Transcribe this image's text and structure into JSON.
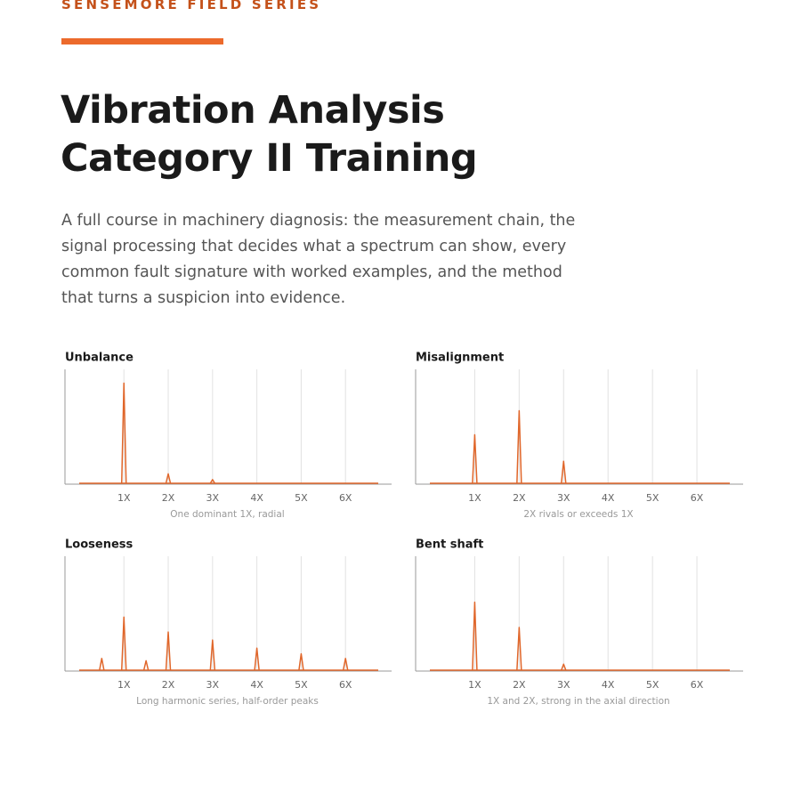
{
  "header": {
    "eyebrow": "SENSEMORE FIELD SERIES",
    "title_lines": [
      "Vibration Analysis",
      "Category II Training"
    ],
    "description": "A full course in machinery diagnosis: the measurement chain, the signal processing that decides what a spectrum can show, every common fault signature with worked examples, and the method that turns a suspicion into evidence."
  },
  "chart_data": [
    {
      "type": "line",
      "title": "Unbalance",
      "caption": "One dominant 1X, radial",
      "color": "#e0662a",
      "x": [
        1,
        2,
        3
      ],
      "values": [
        0.88,
        0.09,
        0.04
      ],
      "xlim": [
        -0.33,
        7.04
      ],
      "ylim": [
        0,
        1
      ],
      "grid": true,
      "xticks": [
        {
          "value": 1,
          "label": "1X"
        },
        {
          "value": 2,
          "label": "2X"
        },
        {
          "value": 3,
          "label": "3X"
        },
        {
          "value": 4,
          "label": "4X"
        },
        {
          "value": 5,
          "label": "5X"
        },
        {
          "value": 6,
          "label": "6X"
        }
      ]
    },
    {
      "type": "line",
      "title": "Misalignment",
      "caption": "2X rivals or exceeds 1X",
      "color": "#e0662a",
      "x": [
        1,
        2,
        3
      ],
      "values": [
        0.43,
        0.64,
        0.2
      ],
      "xlim": [
        -0.33,
        7.04
      ],
      "ylim": [
        0,
        1
      ],
      "grid": true,
      "xticks": [
        {
          "value": 1,
          "label": "1X"
        },
        {
          "value": 2,
          "label": "2X"
        },
        {
          "value": 3,
          "label": "3X"
        },
        {
          "value": 4,
          "label": "4X"
        },
        {
          "value": 5,
          "label": "5X"
        },
        {
          "value": 6,
          "label": "6X"
        }
      ]
    },
    {
      "type": "line",
      "title": "Looseness",
      "caption": "Long harmonic series, half-order peaks",
      "color": "#e0662a",
      "x": [
        0.5,
        1,
        1.5,
        2,
        3,
        4,
        5,
        6
      ],
      "values": [
        0.11,
        0.47,
        0.09,
        0.34,
        0.27,
        0.2,
        0.15,
        0.11
      ],
      "xlim": [
        -0.33,
        7.04
      ],
      "ylim": [
        0,
        1
      ],
      "grid": true,
      "xticks": [
        {
          "value": 1,
          "label": "1X"
        },
        {
          "value": 2,
          "label": "2X"
        },
        {
          "value": 3,
          "label": "3X"
        },
        {
          "value": 4,
          "label": "4X"
        },
        {
          "value": 5,
          "label": "5X"
        },
        {
          "value": 6,
          "label": "6X"
        }
      ]
    },
    {
      "type": "line",
      "title": "Bent shaft",
      "caption": "1X and 2X, strong in the axial direction",
      "color": "#e0662a",
      "x": [
        1,
        2,
        3
      ],
      "values": [
        0.6,
        0.38,
        0.06
      ],
      "xlim": [
        -0.33,
        7.04
      ],
      "ylim": [
        0,
        1
      ],
      "grid": true,
      "xticks": [
        {
          "value": 1,
          "label": "1X"
        },
        {
          "value": 2,
          "label": "2X"
        },
        {
          "value": 3,
          "label": "3X"
        },
        {
          "value": 4,
          "label": "4X"
        },
        {
          "value": 5,
          "label": "5X"
        },
        {
          "value": 6,
          "label": "6X"
        }
      ]
    }
  ]
}
